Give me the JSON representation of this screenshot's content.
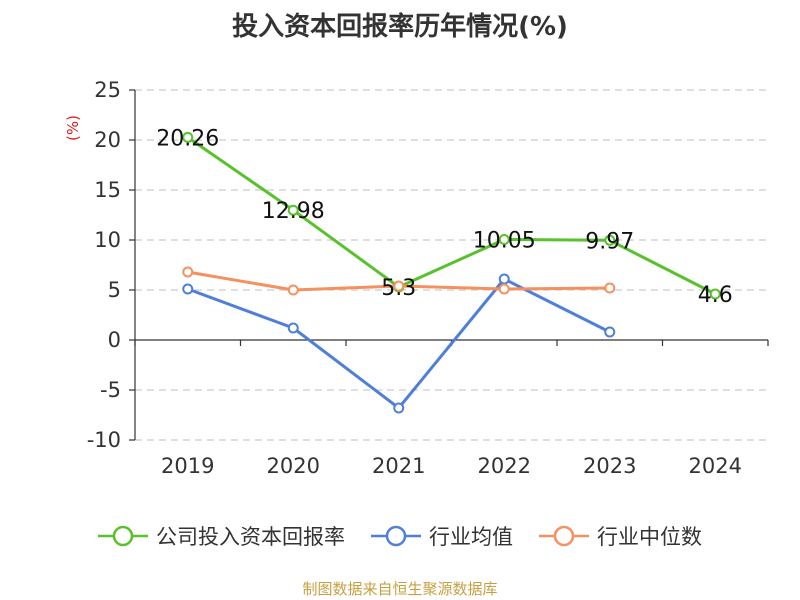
{
  "chart_data": {
    "type": "line",
    "title": "投入资本回报率历年情况(%)",
    "ylabel": "(%)",
    "categories": [
      "2019",
      "2020",
      "2021",
      "2022",
      "2023",
      "2024"
    ],
    "ylim": [
      -10,
      25
    ],
    "yticks": [
      -10,
      -5,
      0,
      5,
      10,
      15,
      20,
      25
    ],
    "ytick_labels": [
      "-10",
      "-5",
      "0",
      "5",
      "10",
      "15",
      "20",
      "25"
    ],
    "grid": true,
    "legend_position": "bottom",
    "series": [
      {
        "name": "公司投入资本回报率",
        "color": "#58c12b",
        "values": [
          20.26,
          12.98,
          5.3,
          10.05,
          9.97,
          4.6
        ],
        "labels": [
          "20.26",
          "12.98",
          "5.3",
          "10.05",
          "9.97",
          "4.6"
        ]
      },
      {
        "name": "行业均值",
        "color": "#4f7fd9",
        "values": [
          5.1,
          1.2,
          -6.8,
          6.1,
          0.8,
          null
        ],
        "labels": []
      },
      {
        "name": "行业中位数",
        "color": "#f4915e",
        "values": [
          6.8,
          5.0,
          5.4,
          5.1,
          5.2,
          null
        ],
        "labels": []
      }
    ]
  },
  "source_note": "制图数据来自恒生聚源数据库"
}
